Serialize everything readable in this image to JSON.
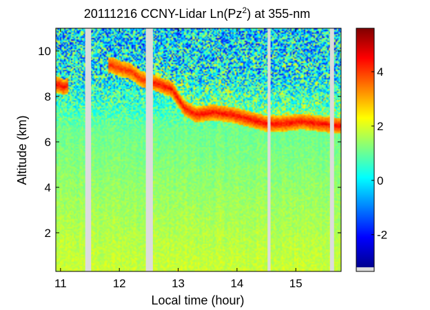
{
  "chart_data": {
    "type": "heatmap",
    "title": "20111216 CCNY-Lidar Ln(Pz",
    "title_superscript": "2",
    "title_suffix": ") at 355-nm",
    "xlabel": "Local time (hour)",
    "ylabel": "Altitude (km)",
    "xlim": [
      10.92,
      15.77
    ],
    "ylim": [
      0.3,
      11.0
    ],
    "x_ticks": [
      11,
      12,
      13,
      14,
      15
    ],
    "y_ticks": [
      2,
      4,
      6,
      8,
      10
    ],
    "colorbar": {
      "range": [
        -3.2,
        5.6
      ],
      "ticks": [
        -2,
        0,
        2,
        4
      ],
      "colormap": "jet"
    },
    "data_gaps_hours": [
      [
        11.42,
        11.52
      ],
      [
        12.45,
        12.57
      ],
      [
        14.52,
        14.57
      ],
      [
        15.58,
        15.65
      ]
    ],
    "cloud_layer": [
      {
        "time": 10.98,
        "altitude_km": 8.5
      },
      {
        "time": 11.05,
        "altitude_km": 8.4
      },
      {
        "time": 11.85,
        "altitude_km": 9.4
      },
      {
        "time": 12.05,
        "altitude_km": 9.2
      },
      {
        "time": 12.2,
        "altitude_km": 9.1
      },
      {
        "time": 12.35,
        "altitude_km": 8.8
      },
      {
        "time": 12.44,
        "altitude_km": 8.7
      },
      {
        "time": 12.6,
        "altitude_km": 8.6
      },
      {
        "time": 12.9,
        "altitude_km": 8.3
      },
      {
        "time": 13.1,
        "altitude_km": 7.5
      },
      {
        "time": 13.3,
        "altitude_km": 7.2
      },
      {
        "time": 13.6,
        "altitude_km": 7.3
      },
      {
        "time": 13.9,
        "altitude_km": 7.2
      },
      {
        "time": 14.2,
        "altitude_km": 7.0
      },
      {
        "time": 14.5,
        "altitude_km": 6.8
      },
      {
        "time": 14.8,
        "altitude_km": 6.8
      },
      {
        "time": 15.1,
        "altitude_km": 6.9
      },
      {
        "time": 15.4,
        "altitude_km": 6.8
      },
      {
        "time": 15.75,
        "altitude_km": 6.7
      }
    ],
    "grid": false
  }
}
